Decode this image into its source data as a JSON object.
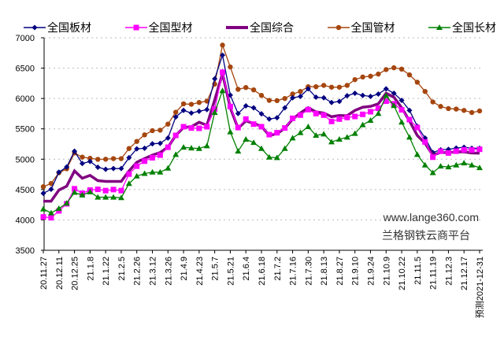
{
  "chart_data": {
    "type": "line",
    "title": "",
    "xlabel": "",
    "ylabel": "",
    "ylim": [
      3500,
      7000
    ],
    "yticks": [
      3500,
      4000,
      4500,
      5000,
      5500,
      6000,
      6500,
      7000
    ],
    "grid": "horizontal dotted",
    "legend_position": "top",
    "tick_labels": [
      "20.11.27",
      "20.12.11",
      "20.12.25",
      "21.1.8",
      "21.1.22",
      "21.2.5",
      "21.2.26",
      "21.3.12",
      "21.3.26",
      "21.4.9",
      "21.4.23",
      "21.5.7",
      "21.5.21",
      "21.6.4",
      "21.6.18",
      "21.7.2",
      "21.7.16",
      "21.7.30",
      "21.8.13",
      "21.8.27",
      "21.9.10",
      "21.9.24",
      "21.10.9",
      "21.10.22",
      "21.11.5",
      "21.11.19",
      "21.12.3",
      "21.12.17",
      "预测2021-12-31"
    ],
    "points_per_series": 57,
    "series": [
      {
        "name": "全国板材",
        "color": "#000080",
        "marker": "diamond",
        "values": [
          4439,
          4504,
          4786,
          4872,
          5132,
          4929,
          4963,
          4868,
          4833,
          4846,
          4846,
          5024,
          5171,
          5180,
          5254,
          5262,
          5349,
          5696,
          5804,
          5761,
          5790,
          5817,
          6324,
          6714,
          6055,
          5752,
          5878,
          5847,
          5748,
          5661,
          5683,
          5847,
          6012,
          6034,
          6159,
          6021,
          6012,
          5934,
          5951,
          6046,
          6086,
          6051,
          6034,
          6073,
          6159,
          6086,
          5969,
          5804,
          5544,
          5349,
          5111,
          5154,
          5163,
          5184,
          5197,
          5180,
          5180
        ]
      },
      {
        "name": "全国型材",
        "color": "#ff00ff",
        "marker": "square",
        "values": [
          4049,
          4036,
          4149,
          4266,
          4513,
          4439,
          4491,
          4504,
          4483,
          4500,
          4483,
          4755,
          4885,
          4968,
          5024,
          5067,
          5197,
          5392,
          5535,
          5514,
          5509,
          5535,
          5826,
          6432,
          5869,
          5522,
          5661,
          5578,
          5535,
          5405,
          5436,
          5514,
          5674,
          5726,
          5817,
          5752,
          5726,
          5622,
          5661,
          5687,
          5704,
          5739,
          5782,
          5839,
          5956,
          5912,
          5813,
          5652,
          5522,
          5284,
          5033,
          5132,
          5102,
          5132,
          5154,
          5154,
          5163
        ]
      },
      {
        "name": "全国综合",
        "color": "#800080",
        "marker": "none",
        "values": [
          4309,
          4309,
          4491,
          4556,
          4807,
          4686,
          4734,
          4647,
          4634,
          4634,
          4634,
          4807,
          4950,
          5011,
          5067,
          5111,
          5197,
          5392,
          5522,
          5535,
          5609,
          5560,
          5977,
          6411,
          5847,
          5509,
          5631,
          5590,
          5540,
          5392,
          5420,
          5510,
          5660,
          5761,
          5847,
          5780,
          5760,
          5700,
          5720,
          5717,
          5804,
          5856,
          5870,
          5912,
          6086,
          6021,
          5847,
          5631,
          5392,
          5262,
          5067,
          5111,
          5111,
          5120,
          5120,
          5102,
          5100
        ]
      },
      {
        "name": "全国管材",
        "color": "#a5460f",
        "marker": "circle",
        "values": [
          4547,
          4600,
          4777,
          4842,
          5102,
          5034,
          5015,
          4998,
          5000,
          5010,
          5010,
          5176,
          5293,
          5401,
          5470,
          5478,
          5578,
          5774,
          5912,
          5904,
          5934,
          5956,
          6237,
          6879,
          6519,
          6151,
          6181,
          6142,
          6051,
          5969,
          5965,
          6000,
          6073,
          6116,
          6194,
          6194,
          6216,
          6186,
          6186,
          6216,
          6311,
          6354,
          6367,
          6402,
          6476,
          6506,
          6484,
          6389,
          6268,
          6116,
          5943,
          5869,
          5834,
          5826,
          5804,
          5769,
          5795
        ]
      },
      {
        "name": "全国长材",
        "color": "#008000",
        "marker": "triangle",
        "values": [
          4179,
          4114,
          4188,
          4274,
          4452,
          4409,
          4461,
          4374,
          4374,
          4374,
          4365,
          4599,
          4721,
          4764,
          4786,
          4786,
          4851,
          5076,
          5197,
          5184,
          5176,
          5219,
          5769,
          6129,
          5449,
          5132,
          5327,
          5275,
          5176,
          5033,
          5024,
          5176,
          5349,
          5436,
          5535,
          5392,
          5414,
          5284,
          5327,
          5362,
          5423,
          5566,
          5639,
          5752,
          6046,
          5882,
          5609,
          5362,
          5076,
          4903,
          4777,
          4885,
          4872,
          4903,
          4937,
          4903,
          4859
        ]
      }
    ],
    "annotations": [
      "www.lange360.com",
      "兰格钢铁云商平台"
    ]
  }
}
